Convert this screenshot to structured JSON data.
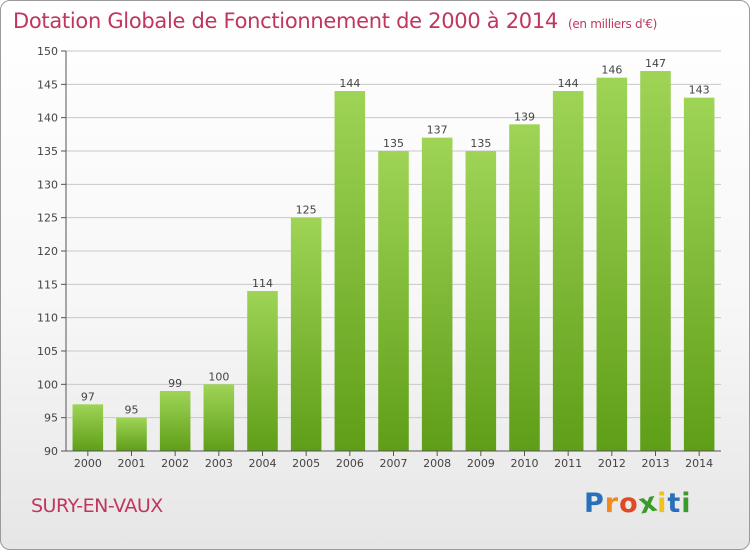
{
  "chart_data": {
    "type": "bar",
    "title": "Dotation Globale de Fonctionnement de 2000 à 2014",
    "subtitle": "(en milliers d'€)",
    "categories": [
      "2000",
      "2001",
      "2002",
      "2003",
      "2004",
      "2005",
      "2006",
      "2007",
      "2008",
      "2009",
      "2010",
      "2011",
      "2012",
      "2013",
      "2014"
    ],
    "values": [
      97,
      95,
      99,
      100,
      114,
      125,
      144,
      135,
      137,
      135,
      139,
      144,
      146,
      147,
      143
    ],
    "ylim": [
      90,
      150
    ],
    "yticks": [
      90,
      95,
      100,
      105,
      110,
      115,
      120,
      125,
      130,
      135,
      140,
      145,
      150
    ],
    "xlabel": "",
    "ylabel": "",
    "grid": true,
    "bar_color_top": "#9fd456",
    "bar_color_bottom": "#5f9e18"
  },
  "commune": "SURY-EN-VAUX",
  "logo": {
    "letters": [
      "P",
      "r",
      "o",
      "x",
      "i",
      "t",
      "i"
    ],
    "colors": [
      "#2a6fba",
      "#f08a1c",
      "#e04a22",
      "#3a9a2a",
      "#f0c21c",
      "#2a6fba",
      "#3a9a2a"
    ]
  },
  "colors": {
    "accent": "#c0365c"
  }
}
